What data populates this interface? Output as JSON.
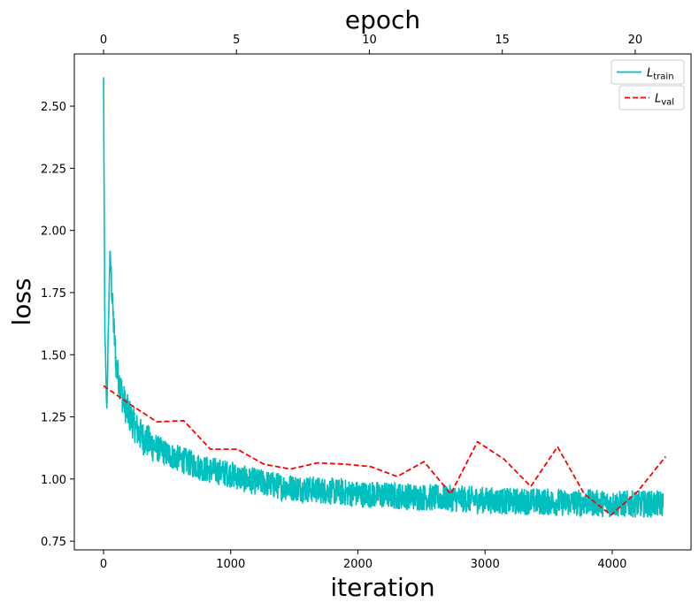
{
  "chart_data": {
    "type": "line",
    "xlabel": "iteration",
    "ylabel": "loss",
    "top_xlabel": "epoch",
    "xlim": [
      -230,
      4620
    ],
    "ylim": [
      0.715,
      2.71
    ],
    "top_xlim": [
      -1.1,
      22.1
    ],
    "x_ticks": [
      0,
      1000,
      2000,
      3000,
      4000
    ],
    "y_ticks": [
      0.75,
      1.0,
      1.25,
      1.5,
      1.75,
      2.0,
      2.25,
      2.5
    ],
    "y_tick_labels": [
      "0.75",
      "1.00",
      "1.25",
      "1.50",
      "1.75",
      "2.00",
      "2.25",
      "2.50"
    ],
    "top_x_ticks": [
      0,
      5,
      10,
      15,
      20
    ],
    "legend_placement": "top-right",
    "grid": false,
    "series": [
      {
        "name_main": "L",
        "name_sub": "train",
        "color": "#00bfbf",
        "style": "solid",
        "x": [
          0,
          10,
          25,
          50,
          75,
          100,
          130,
          150,
          180,
          220,
          260,
          300,
          350,
          400,
          500,
          600,
          700,
          800,
          900,
          1000,
          1100,
          1200,
          1300,
          1400,
          1500,
          1600,
          1700,
          1800,
          1900,
          2000,
          2200,
          2400,
          2600,
          2800,
          3000,
          3200,
          3400,
          3600,
          3800,
          4000,
          4200,
          4400
        ],
        "y": [
          2.61,
          1.6,
          1.27,
          1.92,
          1.65,
          1.45,
          1.38,
          1.33,
          1.28,
          1.24,
          1.2,
          1.17,
          1.15,
          1.13,
          1.1,
          1.08,
          1.06,
          1.04,
          1.03,
          1.02,
          1.0,
          0.99,
          0.98,
          0.97,
          0.965,
          0.96,
          0.955,
          0.95,
          0.945,
          0.94,
          0.935,
          0.93,
          0.925,
          0.92,
          0.915,
          0.91,
          0.91,
          0.905,
          0.905,
          0.9,
          0.9,
          0.9
        ]
      },
      {
        "name_main": "L",
        "name_sub": "val",
        "color": "#ff0000",
        "style": "dashed",
        "x": [
          0,
          210,
          420,
          630,
          840,
          1050,
          1260,
          1470,
          1680,
          1890,
          2100,
          2310,
          2520,
          2730,
          2940,
          3150,
          3360,
          3570,
          3780,
          3990,
          4200,
          4420
        ],
        "y": [
          1.375,
          1.3,
          1.23,
          1.235,
          1.12,
          1.12,
          1.06,
          1.04,
          1.065,
          1.06,
          1.05,
          1.01,
          1.07,
          0.94,
          1.15,
          1.08,
          0.97,
          1.13,
          0.94,
          0.855,
          0.95,
          1.09
        ]
      }
    ]
  }
}
